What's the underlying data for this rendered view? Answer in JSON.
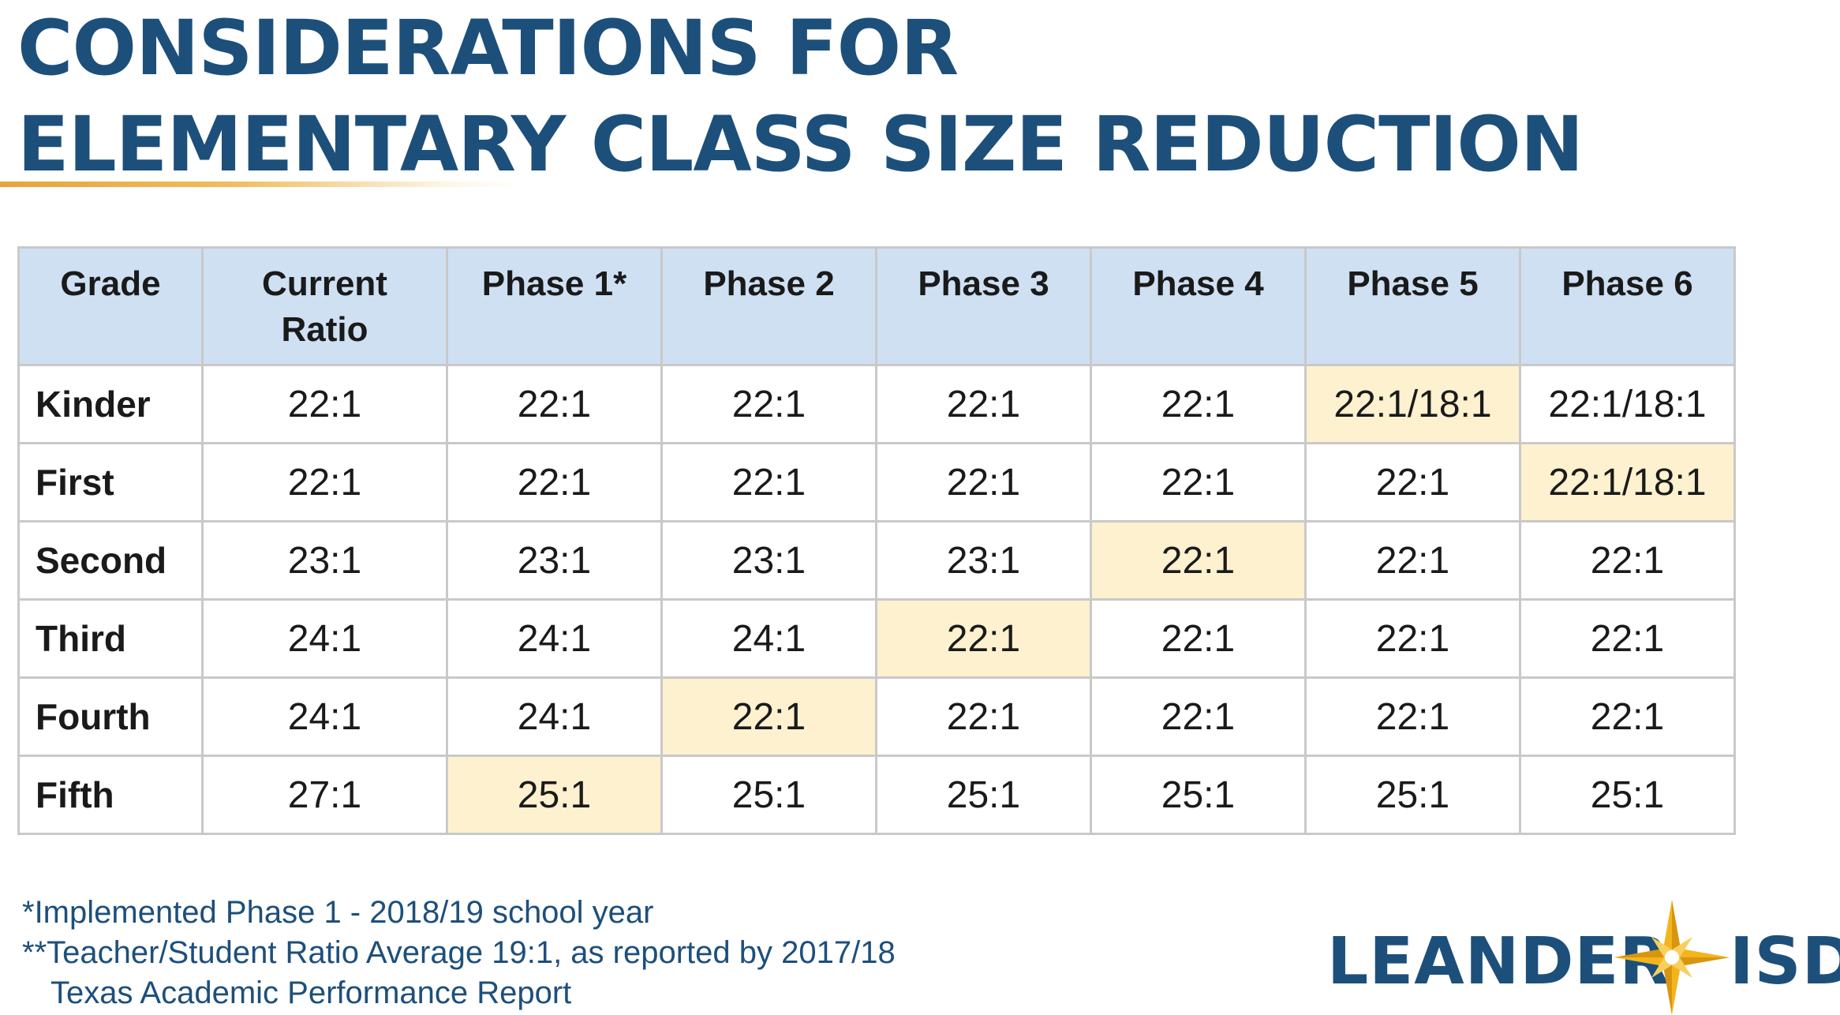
{
  "title": {
    "line1": "CONSIDERATIONS FOR",
    "line2": "ELEMENTARY CLASS SIZE REDUCTION"
  },
  "colors": {
    "title": "#1d4f7b",
    "header_fill": "#cfe0f3",
    "highlight_fill": "#fdf1cf",
    "underline_accent": "#e8a33a",
    "logo_star": "#f2b51c"
  },
  "table": {
    "headers": [
      "Grade",
      "Current Ratio",
      "Phase 1*",
      "Phase 2",
      "Phase 3",
      "Phase 4",
      "Phase 5",
      "Phase 6"
    ],
    "rows": [
      {
        "grade": "Kinder",
        "current": "22:1",
        "phases": [
          "22:1",
          "22:1",
          "22:1",
          "22:1",
          "22:1/18:1",
          "22:1/18:1"
        ],
        "highlight_phase": 5
      },
      {
        "grade": "First",
        "current": "22:1",
        "phases": [
          "22:1",
          "22:1",
          "22:1",
          "22:1",
          "22:1",
          "22:1/18:1"
        ],
        "highlight_phase": 6
      },
      {
        "grade": "Second",
        "current": "23:1",
        "phases": [
          "23:1",
          "23:1",
          "23:1",
          "22:1",
          "22:1",
          "22:1"
        ],
        "highlight_phase": 4
      },
      {
        "grade": "Third",
        "current": "24:1",
        "phases": [
          "24:1",
          "24:1",
          "22:1",
          "22:1",
          "22:1",
          "22:1"
        ],
        "highlight_phase": 3
      },
      {
        "grade": "Fourth",
        "current": "24:1",
        "phases": [
          "24:1",
          "22:1",
          "22:1",
          "22:1",
          "22:1",
          "22:1"
        ],
        "highlight_phase": 2
      },
      {
        "grade": "Fifth",
        "current": "27:1",
        "phases": [
          "25:1",
          "25:1",
          "25:1",
          "25:1",
          "25:1",
          "25:1"
        ],
        "highlight_phase": 1
      }
    ]
  },
  "footnotes": {
    "note1": "*Implemented Phase 1 - 2018/19 school year",
    "note2_line1": "**Teacher/Student Ratio Average 19:1, as reported by 2017/18",
    "note2_line2": "Texas Academic Performance Report"
  },
  "logo": {
    "word1": "LEANDER",
    "word2": "ISD",
    "icon": "compass-star-icon"
  }
}
